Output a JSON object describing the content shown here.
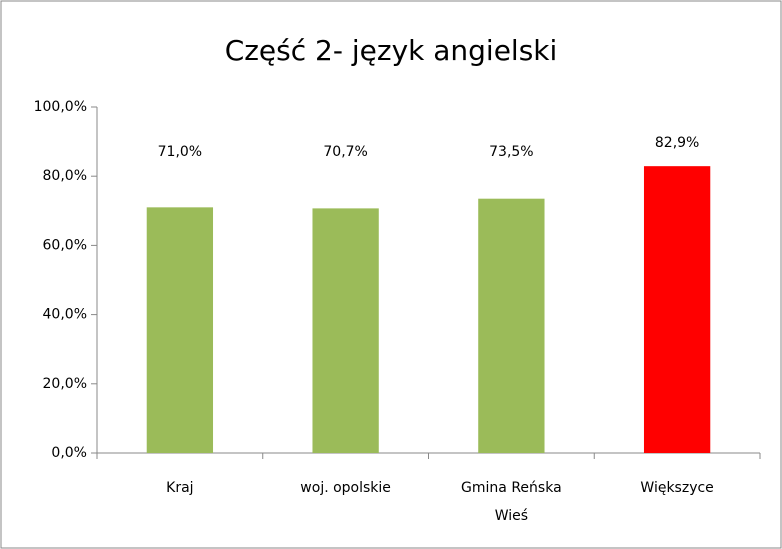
{
  "chart_data": {
    "type": "bar",
    "title": "Część 2- język angielski",
    "categories": [
      "Kraj",
      "woj. opolskie",
      "Gmina Reńska Wieś",
      "Większyce"
    ],
    "values": [
      71.0,
      70.7,
      73.5,
      82.9
    ],
    "value_labels": [
      "71,0%",
      "70,7%",
      "73,5%",
      "82,9%"
    ],
    "colors": [
      "#9bbb59",
      "#9bbb59",
      "#9bbb59",
      "#ff0000"
    ],
    "ylim": [
      0,
      100
    ],
    "yticks": [
      {
        "value": 0,
        "label": "0,0%"
      },
      {
        "value": 20,
        "label": "20,0%"
      },
      {
        "value": 40,
        "label": "40,0%"
      },
      {
        "value": 60,
        "label": "60,0%"
      },
      {
        "value": 80,
        "label": "80,0%"
      },
      {
        "value": 100,
        "label": "100,0%"
      }
    ],
    "grid": false
  }
}
